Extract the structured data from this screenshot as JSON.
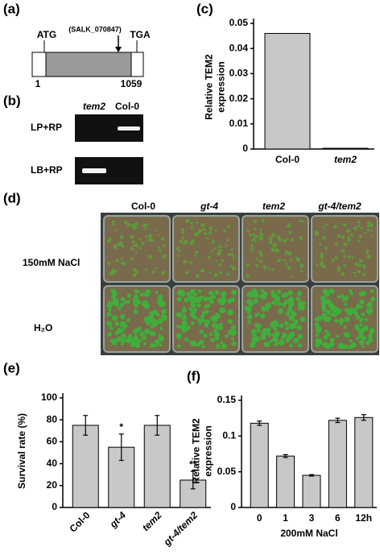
{
  "panel_labels": [
    "(a)",
    "(b)",
    "(c)",
    "(d)",
    "(e)",
    "(f)"
  ],
  "gene": {
    "start_codon": "ATG",
    "stop_codon": "TGA",
    "insertion": "(SALK_070847)",
    "start_position": "1",
    "end_position": "1059"
  },
  "gel": {
    "lanes": [
      "tem2",
      "Col-0"
    ],
    "rows": [
      "LP+RP",
      "LB+RP"
    ]
  },
  "photo": {
    "columns": [
      "Col-0",
      "gt-4",
      "tem2",
      "gt-4/tem2"
    ],
    "rows": [
      "150mM NaCl",
      "H₂O"
    ]
  },
  "chart_data": [
    {
      "type": "bar",
      "ylabel": [
        "Relative TEM2",
        "expression"
      ],
      "categories": [
        "Col-0",
        "tem2"
      ],
      "values": [
        0.046,
        0.0003
      ],
      "color": "#c8c8c8",
      "ylim": [
        0,
        0.05
      ],
      "yticks": [
        0,
        0.01,
        0.02,
        0.03,
        0.04,
        0.05
      ]
    },
    {
      "type": "bar",
      "ylabel": [
        "Survival rate (%)"
      ],
      "categories": [
        "Col-0",
        "gt-4",
        "tem2",
        "gt-4/tem2"
      ],
      "values": [
        75,
        55,
        75,
        25
      ],
      "errors": [
        9,
        12,
        9,
        8
      ],
      "significance": [
        null,
        "*",
        null,
        "**"
      ],
      "color": "#c8c8c8",
      "ylim": [
        0,
        100
      ],
      "yticks": [
        0,
        20,
        40,
        60,
        80,
        100
      ]
    },
    {
      "type": "bar",
      "ylabel": [
        "Relative TEM2",
        "expression"
      ],
      "xlabel": "200mM NaCl",
      "categories": [
        "0",
        "1",
        "3",
        "6",
        "12h"
      ],
      "values": [
        0.118,
        0.072,
        0.045,
        0.122,
        0.126
      ],
      "errors": [
        0.003,
        0.002,
        0.001,
        0.003,
        0.004
      ],
      "color": "#c8c8c8",
      "ylim": [
        0,
        0.15
      ],
      "yticks": [
        0,
        0.05,
        0.1,
        0.15
      ]
    }
  ]
}
